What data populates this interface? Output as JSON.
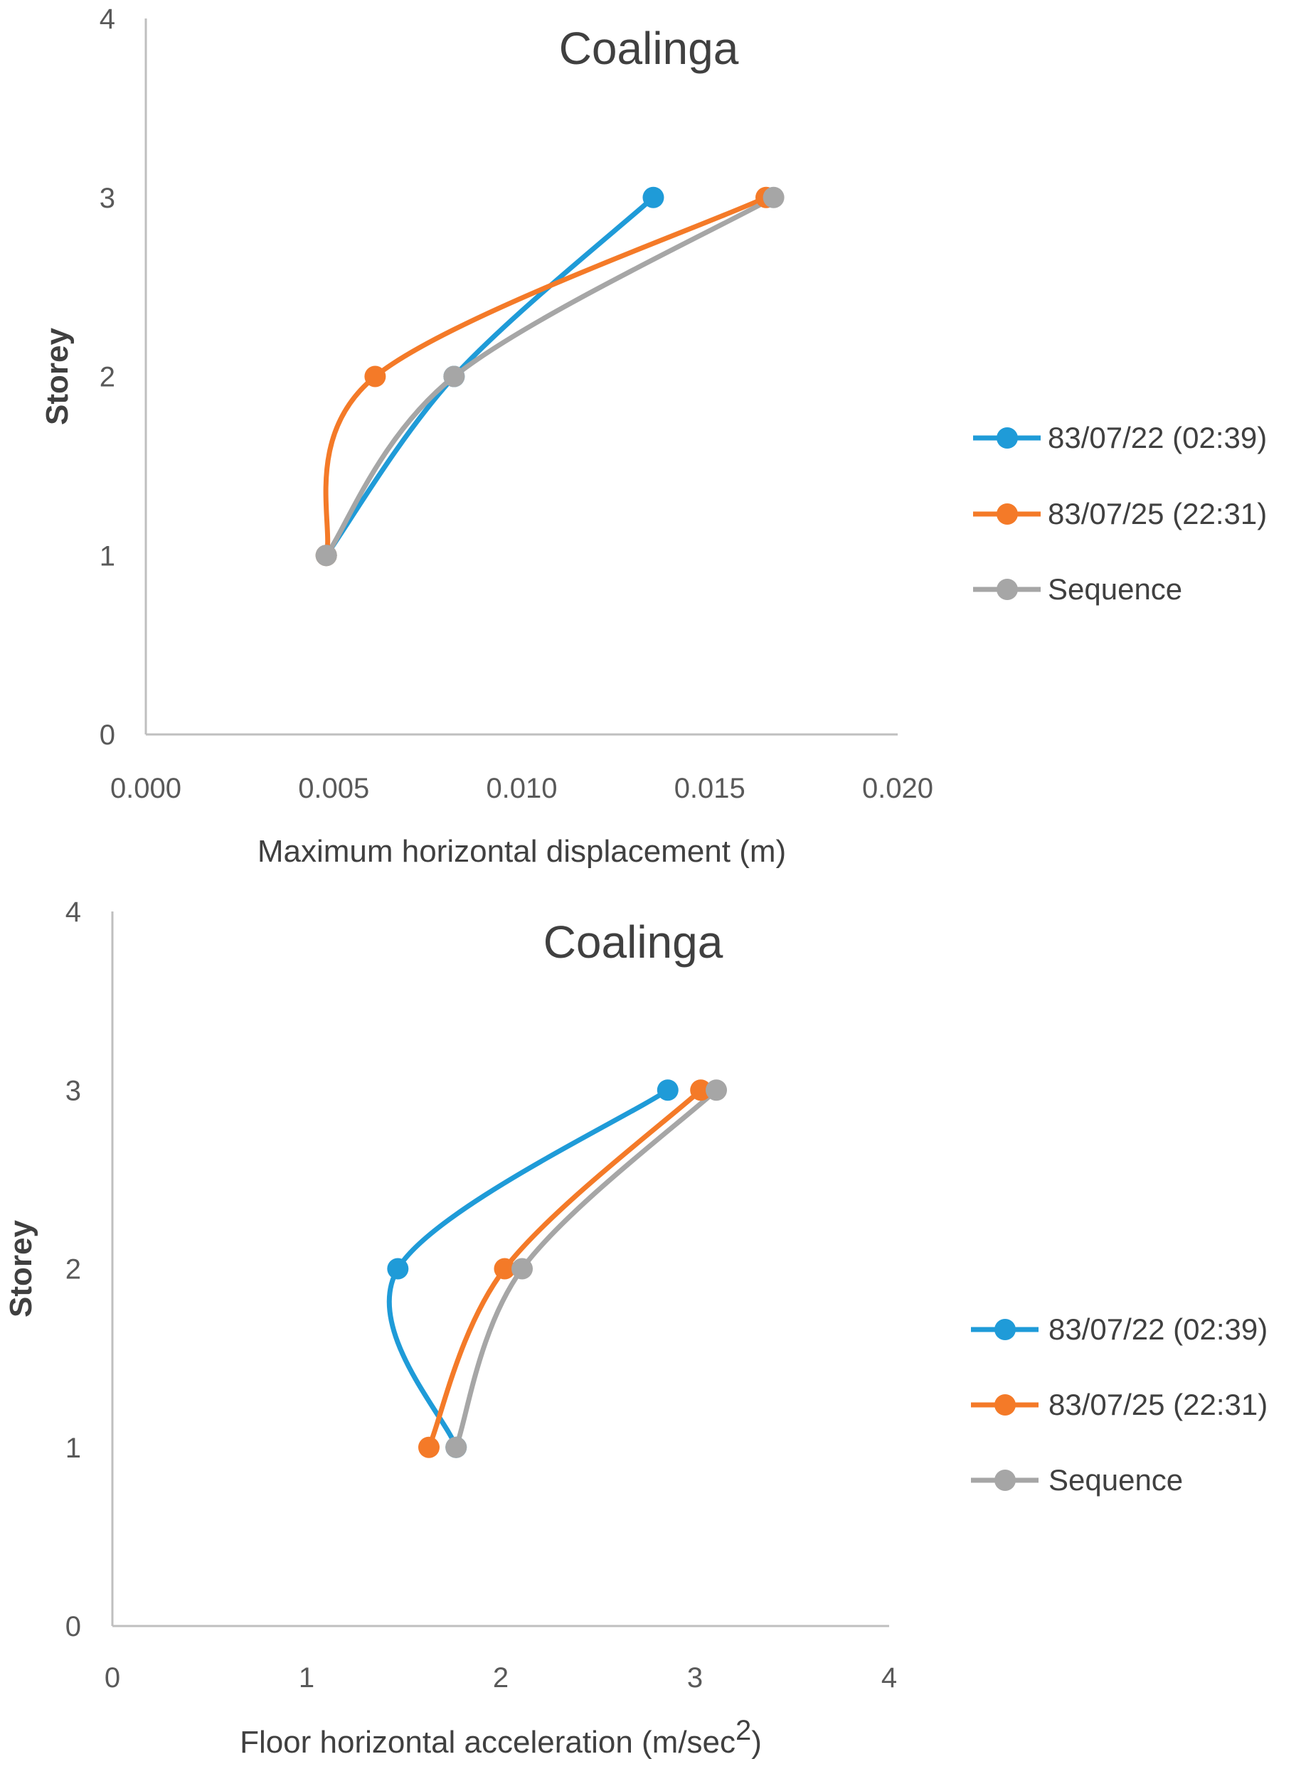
{
  "chart_data": [
    {
      "type": "line",
      "title": "Coalinga",
      "xlabel": "Maximum horizontal displacement (m)",
      "ylabel": "Storey",
      "xlim": [
        0.0,
        0.02
      ],
      "ylim": [
        0,
        4
      ],
      "xticks": [
        "0.000",
        "0.005",
        "0.010",
        "0.015",
        "0.020"
      ],
      "yticks": [
        "0",
        "1",
        "2",
        "3",
        "4"
      ],
      "legend_position": "right",
      "series": [
        {
          "name": "83/07/22 (02:39)",
          "color": "#1f9bd8",
          "x": [
            0.0048,
            0.0082,
            0.0135
          ],
          "y": [
            1,
            2,
            3
          ]
        },
        {
          "name": "83/07/25 (22:31)",
          "color": "#f47a28",
          "x": [
            0.0048,
            0.0061,
            0.0165
          ],
          "y": [
            1,
            2,
            3
          ]
        },
        {
          "name": "Sequence",
          "color": "#a6a6a6",
          "x": [
            0.0048,
            0.0082,
            0.0167
          ],
          "y": [
            1,
            2,
            3
          ]
        }
      ]
    },
    {
      "type": "line",
      "title": "Coalinga",
      "xlabel": "Floor horizontal acceleration  (m/sec",
      "xlabel_superscript": "2",
      "xlabel_close": ")",
      "ylabel": "Storey",
      "xlim": [
        0,
        4
      ],
      "ylim": [
        0,
        4
      ],
      "xticks": [
        "0",
        "1",
        "2",
        "3",
        "4"
      ],
      "yticks": [
        "0",
        "1",
        "2",
        "3",
        "4"
      ],
      "legend_position": "right",
      "series": [
        {
          "name": "83/07/22 (02:39)",
          "color": "#1f9bd8",
          "x": [
            1.77,
            1.47,
            2.86
          ],
          "y": [
            1,
            2,
            3
          ]
        },
        {
          "name": "83/07/25 (22:31)",
          "color": "#f47a28",
          "x": [
            1.63,
            2.02,
            3.03
          ],
          "y": [
            1,
            2,
            3
          ]
        },
        {
          "name": "Sequence",
          "color": "#a6a6a6",
          "x": [
            1.77,
            2.11,
            3.11
          ],
          "y": [
            1,
            2,
            3
          ]
        }
      ]
    }
  ]
}
